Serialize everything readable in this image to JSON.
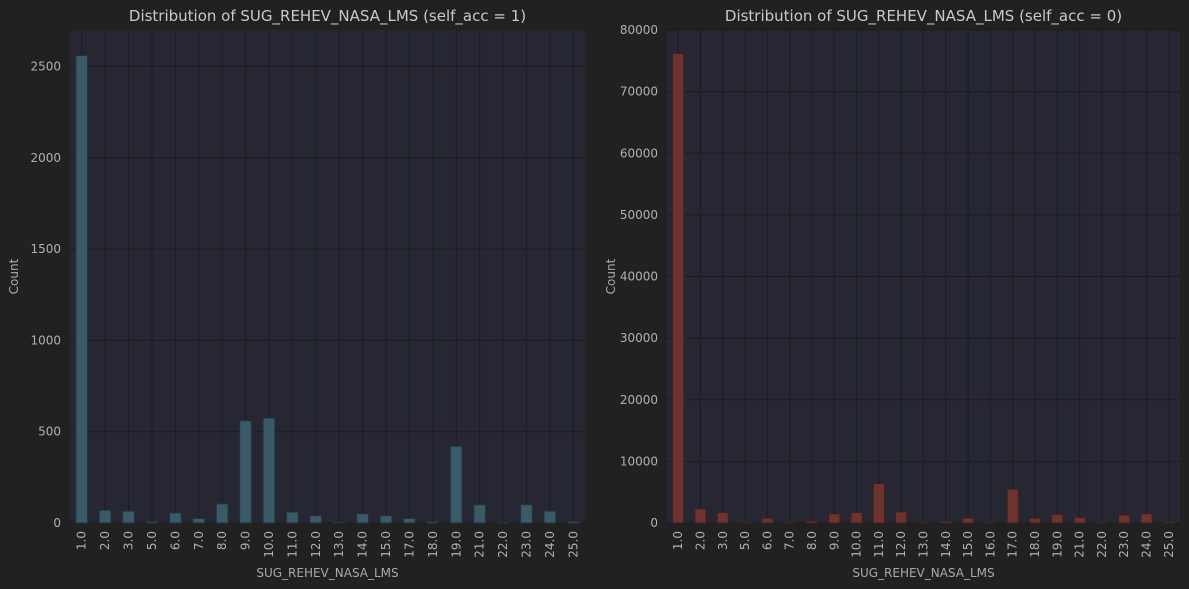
{
  "chart_data": [
    {
      "type": "bar",
      "title": "Distribution of SUG_REHEV_NASA_LMS (self_acc = 1)",
      "xlabel": "SUG_REHEV_NASA_LMS",
      "ylabel": "Count",
      "color": "#3b5a68",
      "edgecolor": "#22343d",
      "ylim": [
        0,
        2700
      ],
      "yticks": [
        0,
        500,
        1000,
        1500,
        2000,
        2500
      ],
      "grid": true,
      "categories": [
        "1.0",
        "2.0",
        "3.0",
        "5.0",
        "6.0",
        "7.0",
        "8.0",
        "9.0",
        "10.0",
        "11.0",
        "12.0",
        "13.0",
        "14.0",
        "15.0",
        "17.0",
        "18.0",
        "19.0",
        "21.0",
        "22.0",
        "23.0",
        "24.0",
        "25.0"
      ],
      "values": [
        2560,
        70,
        65,
        8,
        55,
        25,
        105,
        560,
        575,
        60,
        40,
        5,
        50,
        40,
        25,
        8,
        420,
        100,
        3,
        100,
        65,
        8
      ]
    },
    {
      "type": "bar",
      "title": "Distribution of SUG_REHEV_NASA_LMS (self_acc = 0)",
      "xlabel": "SUG_REHEV_NASA_LMS",
      "ylabel": "Count",
      "color": "#6d342f",
      "edgecolor": "#3f201d",
      "ylim": [
        0,
        80000
      ],
      "yticks": [
        0,
        10000,
        20000,
        30000,
        40000,
        50000,
        60000,
        70000,
        80000
      ],
      "grid": true,
      "categories": [
        "1.0",
        "2.0",
        "3.0",
        "5.0",
        "6.0",
        "7.0",
        "8.0",
        "9.0",
        "10.0",
        "11.0",
        "12.0",
        "13.0",
        "14.0",
        "15.0",
        "16.0",
        "17.0",
        "18.0",
        "19.0",
        "21.0",
        "22.0",
        "23.0",
        "24.0",
        "25.0"
      ],
      "values": [
        76200,
        2300,
        1700,
        100,
        800,
        100,
        300,
        1500,
        1700,
        6400,
        1800,
        100,
        300,
        800,
        100,
        5500,
        800,
        1400,
        900,
        100,
        1300,
        1500,
        200
      ]
    }
  ]
}
